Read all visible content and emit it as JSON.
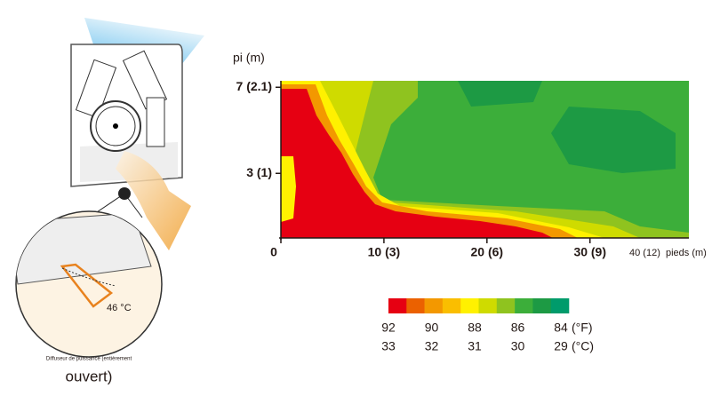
{
  "illustration": {
    "temperature_label": "46 °C",
    "caption_small": "Diffuseur de puissance (entièrement",
    "caption": "ouvert)"
  },
  "chart_data": {
    "type": "contour",
    "y_label": "pi (m)",
    "x_label": "pieds (m)",
    "xlim": [
      0,
      39.6
    ],
    "ylim": [
      0,
      7.3
    ],
    "xticks": [
      0,
      {
        "value": 10,
        "label": "10 (3)"
      },
      {
        "value": 20,
        "label": "20 (6)"
      },
      {
        "value": 30,
        "label": "30 (9)"
      },
      {
        "value": 40,
        "label": "40 (12)"
      }
    ],
    "yticks": [
      {
        "value": 3,
        "label": "3 (1)"
      },
      {
        "value": 7,
        "label": "7 (2.1)"
      }
    ],
    "colorbar": {
      "colors": [
        "#e60012",
        "#eb6100",
        "#f39800",
        "#fabe00",
        "#fff100",
        "#cfdb00",
        "#8fc31f",
        "#3cae3a",
        "#1d9a44",
        "#009b6b"
      ],
      "fahrenheit_ticks": [
        92,
        90,
        88,
        86,
        84
      ],
      "fahrenheit_unit": "(°F)",
      "celsius_ticks": [
        33,
        32,
        31,
        30,
        29
      ],
      "celsius_unit": "(°C)"
    }
  }
}
